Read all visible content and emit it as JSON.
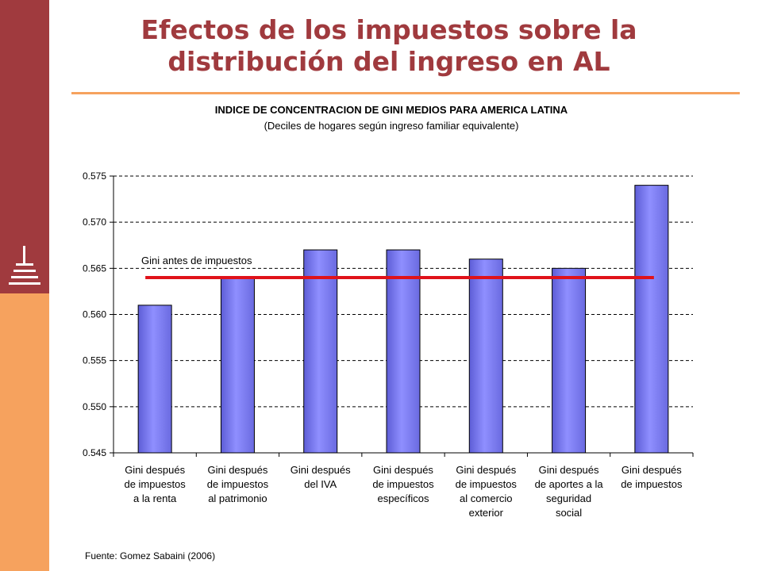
{
  "slide": {
    "title_line1": "Efectos de los impuestos sobre la",
    "title_line2": "distribución del ingreso en AL",
    "source": "Fuente: Gomez Sabaini (2006)"
  },
  "colors": {
    "band_top": "#a03a3e",
    "band_bottom": "#f6a25e",
    "title": "#a03a3e",
    "bar_fill": "#8f8fff",
    "reference_line": "#e0121a"
  },
  "chart_data": {
    "type": "bar",
    "title": "INDICE DE CONCENTRACION DE GINI MEDIOS PARA AMERICA LATINA",
    "subtitle": "(Deciles de hogares según ingreso familiar equivalente)",
    "xlabel": "",
    "ylabel": "",
    "ylim": [
      0.545,
      0.575
    ],
    "yticks": [
      "0.545",
      "0.550",
      "0.555",
      "0.560",
      "0.565",
      "0.570",
      "0.575"
    ],
    "grid": true,
    "categories": [
      [
        "Gini después",
        "de impuestos",
        "a la renta"
      ],
      [
        "Gini después",
        "de impuestos",
        "al patrimonio"
      ],
      [
        "Gini después",
        "del IVA"
      ],
      [
        "Gini después",
        "de impuestos",
        "específicos"
      ],
      [
        "Gini después",
        "de impuestos",
        "al comercio",
        "exterior"
      ],
      [
        "Gini después",
        "de aportes a la",
        "seguridad",
        "social"
      ],
      [
        "Gini después",
        "de impuestos"
      ]
    ],
    "values": [
      0.561,
      0.564,
      0.567,
      0.567,
      0.566,
      0.565,
      0.574
    ],
    "reference_line": {
      "label": "Gini antes de impuestos",
      "value": 0.564
    }
  }
}
